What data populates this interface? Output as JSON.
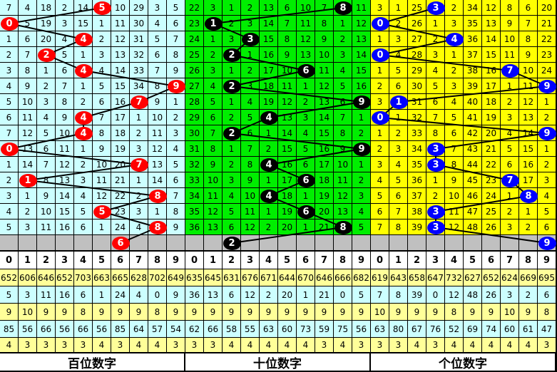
{
  "chart_data": {
    "type": "table",
    "sections": [
      {
        "label": "百位数字",
        "bg": "#ccffff",
        "ball_color": "#ff0000",
        "digits": [
          "0",
          "1",
          "2",
          "3",
          "4",
          "5",
          "6",
          "7",
          "8",
          "9"
        ],
        "rows": [
          [
            7,
            4,
            18,
            2,
            14,
            5,
            10,
            29,
            3,
            5
          ],
          [
            0,
            5,
            19,
            3,
            15,
            1,
            11,
            30,
            4,
            6
          ],
          [
            1,
            6,
            20,
            4,
            4,
            2,
            12,
            31,
            5,
            7
          ],
          [
            2,
            7,
            2,
            5,
            1,
            3,
            13,
            32,
            6,
            8
          ],
          [
            3,
            8,
            1,
            6,
            4,
            4,
            14,
            33,
            7,
            9
          ],
          [
            4,
            9,
            2,
            7,
            1,
            5,
            15,
            34,
            8,
            9
          ],
          [
            5,
            10,
            3,
            8,
            2,
            6,
            16,
            7,
            9,
            1
          ],
          [
            6,
            11,
            4,
            9,
            4,
            7,
            17,
            1,
            10,
            2
          ],
          [
            7,
            12,
            5,
            10,
            4,
            8,
            18,
            2,
            11,
            3
          ],
          [
            0,
            13,
            6,
            11,
            1,
            9,
            19,
            3,
            12,
            4
          ],
          [
            1,
            14,
            7,
            12,
            2,
            10,
            20,
            7,
            13,
            5
          ],
          [
            2,
            1,
            8,
            13,
            3,
            11,
            21,
            1,
            14,
            6
          ],
          [
            3,
            1,
            9,
            14,
            4,
            12,
            22,
            2,
            8,
            7
          ],
          [
            4,
            2,
            10,
            15,
            5,
            5,
            23,
            3,
            1,
            8
          ],
          [
            5,
            3,
            11,
            16,
            6,
            1,
            24,
            4,
            8,
            9
          ]
        ],
        "hits": [
          5,
          0,
          4,
          2,
          4,
          9,
          7,
          4,
          4,
          0,
          7,
          1,
          8,
          5,
          8
        ],
        "prediction": 6,
        "stats": [
          [
            "652",
            "606",
            "646",
            "652",
            "703",
            "663",
            "665",
            "628",
            "702",
            "649"
          ],
          [
            "5",
            "3",
            "11",
            "16",
            "6",
            "1",
            "24",
            "4",
            "0",
            "9"
          ],
          [
            "9",
            "10",
            "9",
            "9",
            "8",
            "9",
            "9",
            "9",
            "8",
            "9"
          ],
          [
            "85",
            "56",
            "66",
            "56",
            "66",
            "56",
            "85",
            "64",
            "57",
            "54"
          ],
          [
            "4",
            "3",
            "3",
            "3",
            "3",
            "4",
            "3",
            "4",
            "4",
            "3"
          ]
        ]
      },
      {
        "label": "十位数字",
        "bg": "#00ee00",
        "ball_color": "#000000",
        "digits": [
          "0",
          "1",
          "2",
          "3",
          "4",
          "5",
          "6",
          "7",
          "8",
          "9"
        ],
        "rows": [
          [
            22,
            3,
            1,
            2,
            13,
            6,
            10,
            7,
            8,
            11
          ],
          [
            23,
            1,
            2,
            3,
            14,
            7,
            11,
            8,
            1,
            12
          ],
          [
            24,
            1,
            3,
            3,
            15,
            8,
            12,
            9,
            2,
            13
          ],
          [
            25,
            2,
            2,
            1,
            16,
            9,
            13,
            10,
            3,
            14
          ],
          [
            26,
            3,
            1,
            2,
            17,
            10,
            6,
            11,
            4,
            15
          ],
          [
            27,
            4,
            2,
            3,
            18,
            11,
            1,
            12,
            5,
            16
          ],
          [
            28,
            5,
            1,
            4,
            19,
            12,
            2,
            13,
            6,
            9
          ],
          [
            29,
            6,
            2,
            5,
            4,
            13,
            3,
            14,
            7,
            1
          ],
          [
            30,
            7,
            2,
            6,
            1,
            14,
            4,
            15,
            8,
            2
          ],
          [
            31,
            8,
            1,
            7,
            2,
            15,
            5,
            16,
            9,
            9
          ],
          [
            32,
            9,
            2,
            8,
            4,
            16,
            6,
            17,
            10,
            1
          ],
          [
            33,
            10,
            3,
            9,
            1,
            17,
            6,
            18,
            11,
            2
          ],
          [
            34,
            11,
            4,
            10,
            4,
            18,
            1,
            19,
            12,
            3
          ],
          [
            35,
            12,
            5,
            11,
            1,
            19,
            6,
            20,
            13,
            4
          ],
          [
            36,
            13,
            6,
            12,
            2,
            20,
            1,
            21,
            8,
            5
          ]
        ],
        "hits": [
          8,
          1,
          3,
          2,
          6,
          2,
          9,
          4,
          2,
          9,
          4,
          6,
          4,
          6,
          8
        ],
        "prediction": 2,
        "stats": [
          [
            "635",
            "645",
            "631",
            "676",
            "671",
            "644",
            "670",
            "646",
            "666",
            "682"
          ],
          [
            "36",
            "13",
            "6",
            "12",
            "2",
            "20",
            "1",
            "21",
            "0",
            "5"
          ],
          [
            "9",
            "9",
            "9",
            "9",
            "9",
            "9",
            "9",
            "9",
            "9",
            "9"
          ],
          [
            "62",
            "66",
            "58",
            "55",
            "63",
            "60",
            "73",
            "59",
            "75",
            "56"
          ],
          [
            "3",
            "3",
            "4",
            "4",
            "4",
            "4",
            "4",
            "3",
            "4",
            "3"
          ]
        ]
      },
      {
        "label": "个位数字",
        "bg": "#ffff00",
        "ball_color": "#0000ff",
        "digits": [
          "0",
          "1",
          "2",
          "3",
          "4",
          "5",
          "6",
          "7",
          "8",
          "9"
        ],
        "rows": [
          [
            3,
            1,
            25,
            3,
            2,
            34,
            12,
            8,
            6,
            20
          ],
          [
            0,
            2,
            26,
            1,
            3,
            35,
            13,
            9,
            7,
            21
          ],
          [
            1,
            3,
            27,
            2,
            4,
            36,
            14,
            10,
            8,
            22
          ],
          [
            0,
            4,
            28,
            3,
            1,
            37,
            15,
            11,
            9,
            23
          ],
          [
            1,
            5,
            29,
            4,
            2,
            38,
            16,
            7,
            10,
            24
          ],
          [
            2,
            6,
            30,
            5,
            3,
            39,
            17,
            1,
            11,
            9
          ],
          [
            3,
            1,
            31,
            6,
            4,
            40,
            18,
            2,
            12,
            1
          ],
          [
            0,
            1,
            32,
            7,
            5,
            41,
            19,
            3,
            13,
            2
          ],
          [
            1,
            2,
            33,
            8,
            6,
            42,
            20,
            4,
            14,
            9
          ],
          [
            2,
            3,
            34,
            3,
            7,
            43,
            21,
            5,
            15,
            1
          ],
          [
            3,
            4,
            35,
            3,
            8,
            44,
            22,
            6,
            16,
            2
          ],
          [
            4,
            5,
            36,
            1,
            9,
            45,
            23,
            7,
            17,
            3
          ],
          [
            5,
            6,
            37,
            2,
            10,
            46,
            24,
            1,
            8,
            4
          ],
          [
            6,
            7,
            38,
            3,
            11,
            47,
            25,
            2,
            1,
            5
          ],
          [
            7,
            8,
            39,
            3,
            12,
            48,
            26,
            3,
            2,
            6
          ]
        ],
        "hits": [
          3,
          0,
          4,
          0,
          7,
          9,
          1,
          0,
          9,
          3,
          3,
          7,
          8,
          3,
          3
        ],
        "prediction": 9,
        "stats": [
          [
            "619",
            "643",
            "658",
            "647",
            "732",
            "627",
            "652",
            "624",
            "669",
            "695"
          ],
          [
            "7",
            "8",
            "39",
            "0",
            "12",
            "48",
            "26",
            "3",
            "2",
            "6"
          ],
          [
            "10",
            "9",
            "9",
            "9",
            "8",
            "9",
            "9",
            "10",
            "9",
            "8"
          ],
          [
            "63",
            "80",
            "67",
            "76",
            "52",
            "69",
            "74",
            "60",
            "61",
            "47"
          ],
          [
            "3",
            "3",
            "4",
            "3",
            "4",
            "4",
            "4",
            "4",
            "4",
            "3"
          ]
        ]
      }
    ]
  }
}
